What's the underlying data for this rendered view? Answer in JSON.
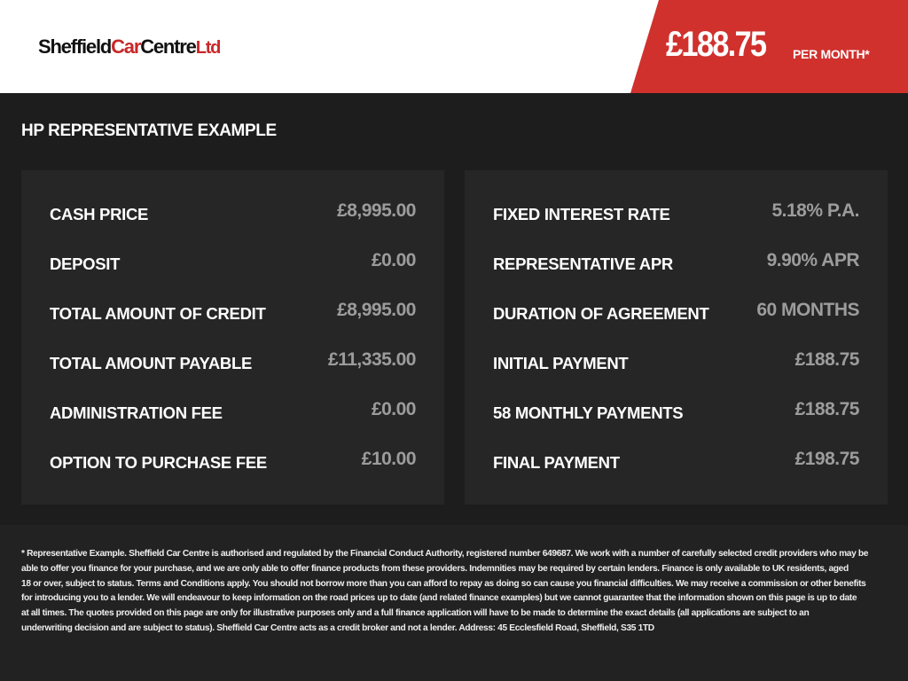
{
  "header": {
    "logo": {
      "part1": "Sheffield",
      "part2": "Car",
      "part3": "Centre",
      "part4": "Ltd"
    },
    "price": "£188.75",
    "per_month": "PER MONTH*"
  },
  "colors": {
    "accent": "#d0312d",
    "background": "#1d1d1d",
    "panel": "#262626"
  },
  "title": "HP REPRESENTATIVE EXAMPLE",
  "left": [
    {
      "label": "CASH PRICE",
      "value": "£8,995.00"
    },
    {
      "label": "DEPOSIT",
      "value": "£0.00"
    },
    {
      "label": "TOTAL AMOUNT OF CREDIT",
      "value": "£8,995.00"
    },
    {
      "label": "TOTAL AMOUNT PAYABLE",
      "value": "£11,335.00"
    },
    {
      "label": "ADMINISTRATION FEE",
      "value": "£0.00"
    },
    {
      "label": "OPTION TO PURCHASE FEE",
      "value": "£10.00"
    }
  ],
  "right": [
    {
      "label": "FIXED INTEREST RATE",
      "value": "5.18% P.A."
    },
    {
      "label": "REPRESENTATIVE APR",
      "value": "9.90% APR"
    },
    {
      "label": "DURATION OF AGREEMENT",
      "value": "60 MONTHS"
    },
    {
      "label": "INITIAL PAYMENT",
      "value": "£188.75"
    },
    {
      "label": "58 MONTHLY PAYMENTS",
      "value": "£188.75"
    },
    {
      "label": "FINAL PAYMENT",
      "value": "£198.75"
    }
  ],
  "disclaimer": [
    "* Representative Example. Sheffield Car Centre is authorised and regulated by the Financial Conduct Authority, registered number 649687. We work with a number of carefully selected credit providers who may be",
    "able to offer you finance for your purchase, and we are only able to offer finance products from these providers. Indemnities may be required by certain lenders. Finance is only available to UK residents, aged",
    "18 or over, subject to status. Terms and Conditions apply. You should not borrow more than you can afford to repay as doing so can cause you financial difficulties. We may receive a commission or other benefits",
    "for introducing you to a lender. We will endeavour to keep information on the road prices up to date (and related finance examples) but we cannot guarantee that the information shown on this page is up to date",
    "at all times. The quotes provided on this page are only for illustrative purposes only and a full finance application will have to be made to determine the exact details (all applications are subject to an",
    "underwriting decision and are subject to status). Sheffield Car Centre acts as a credit broker and not a lender. Address: 45 Ecclesfield Road, Sheffield, S35 1TD"
  ]
}
